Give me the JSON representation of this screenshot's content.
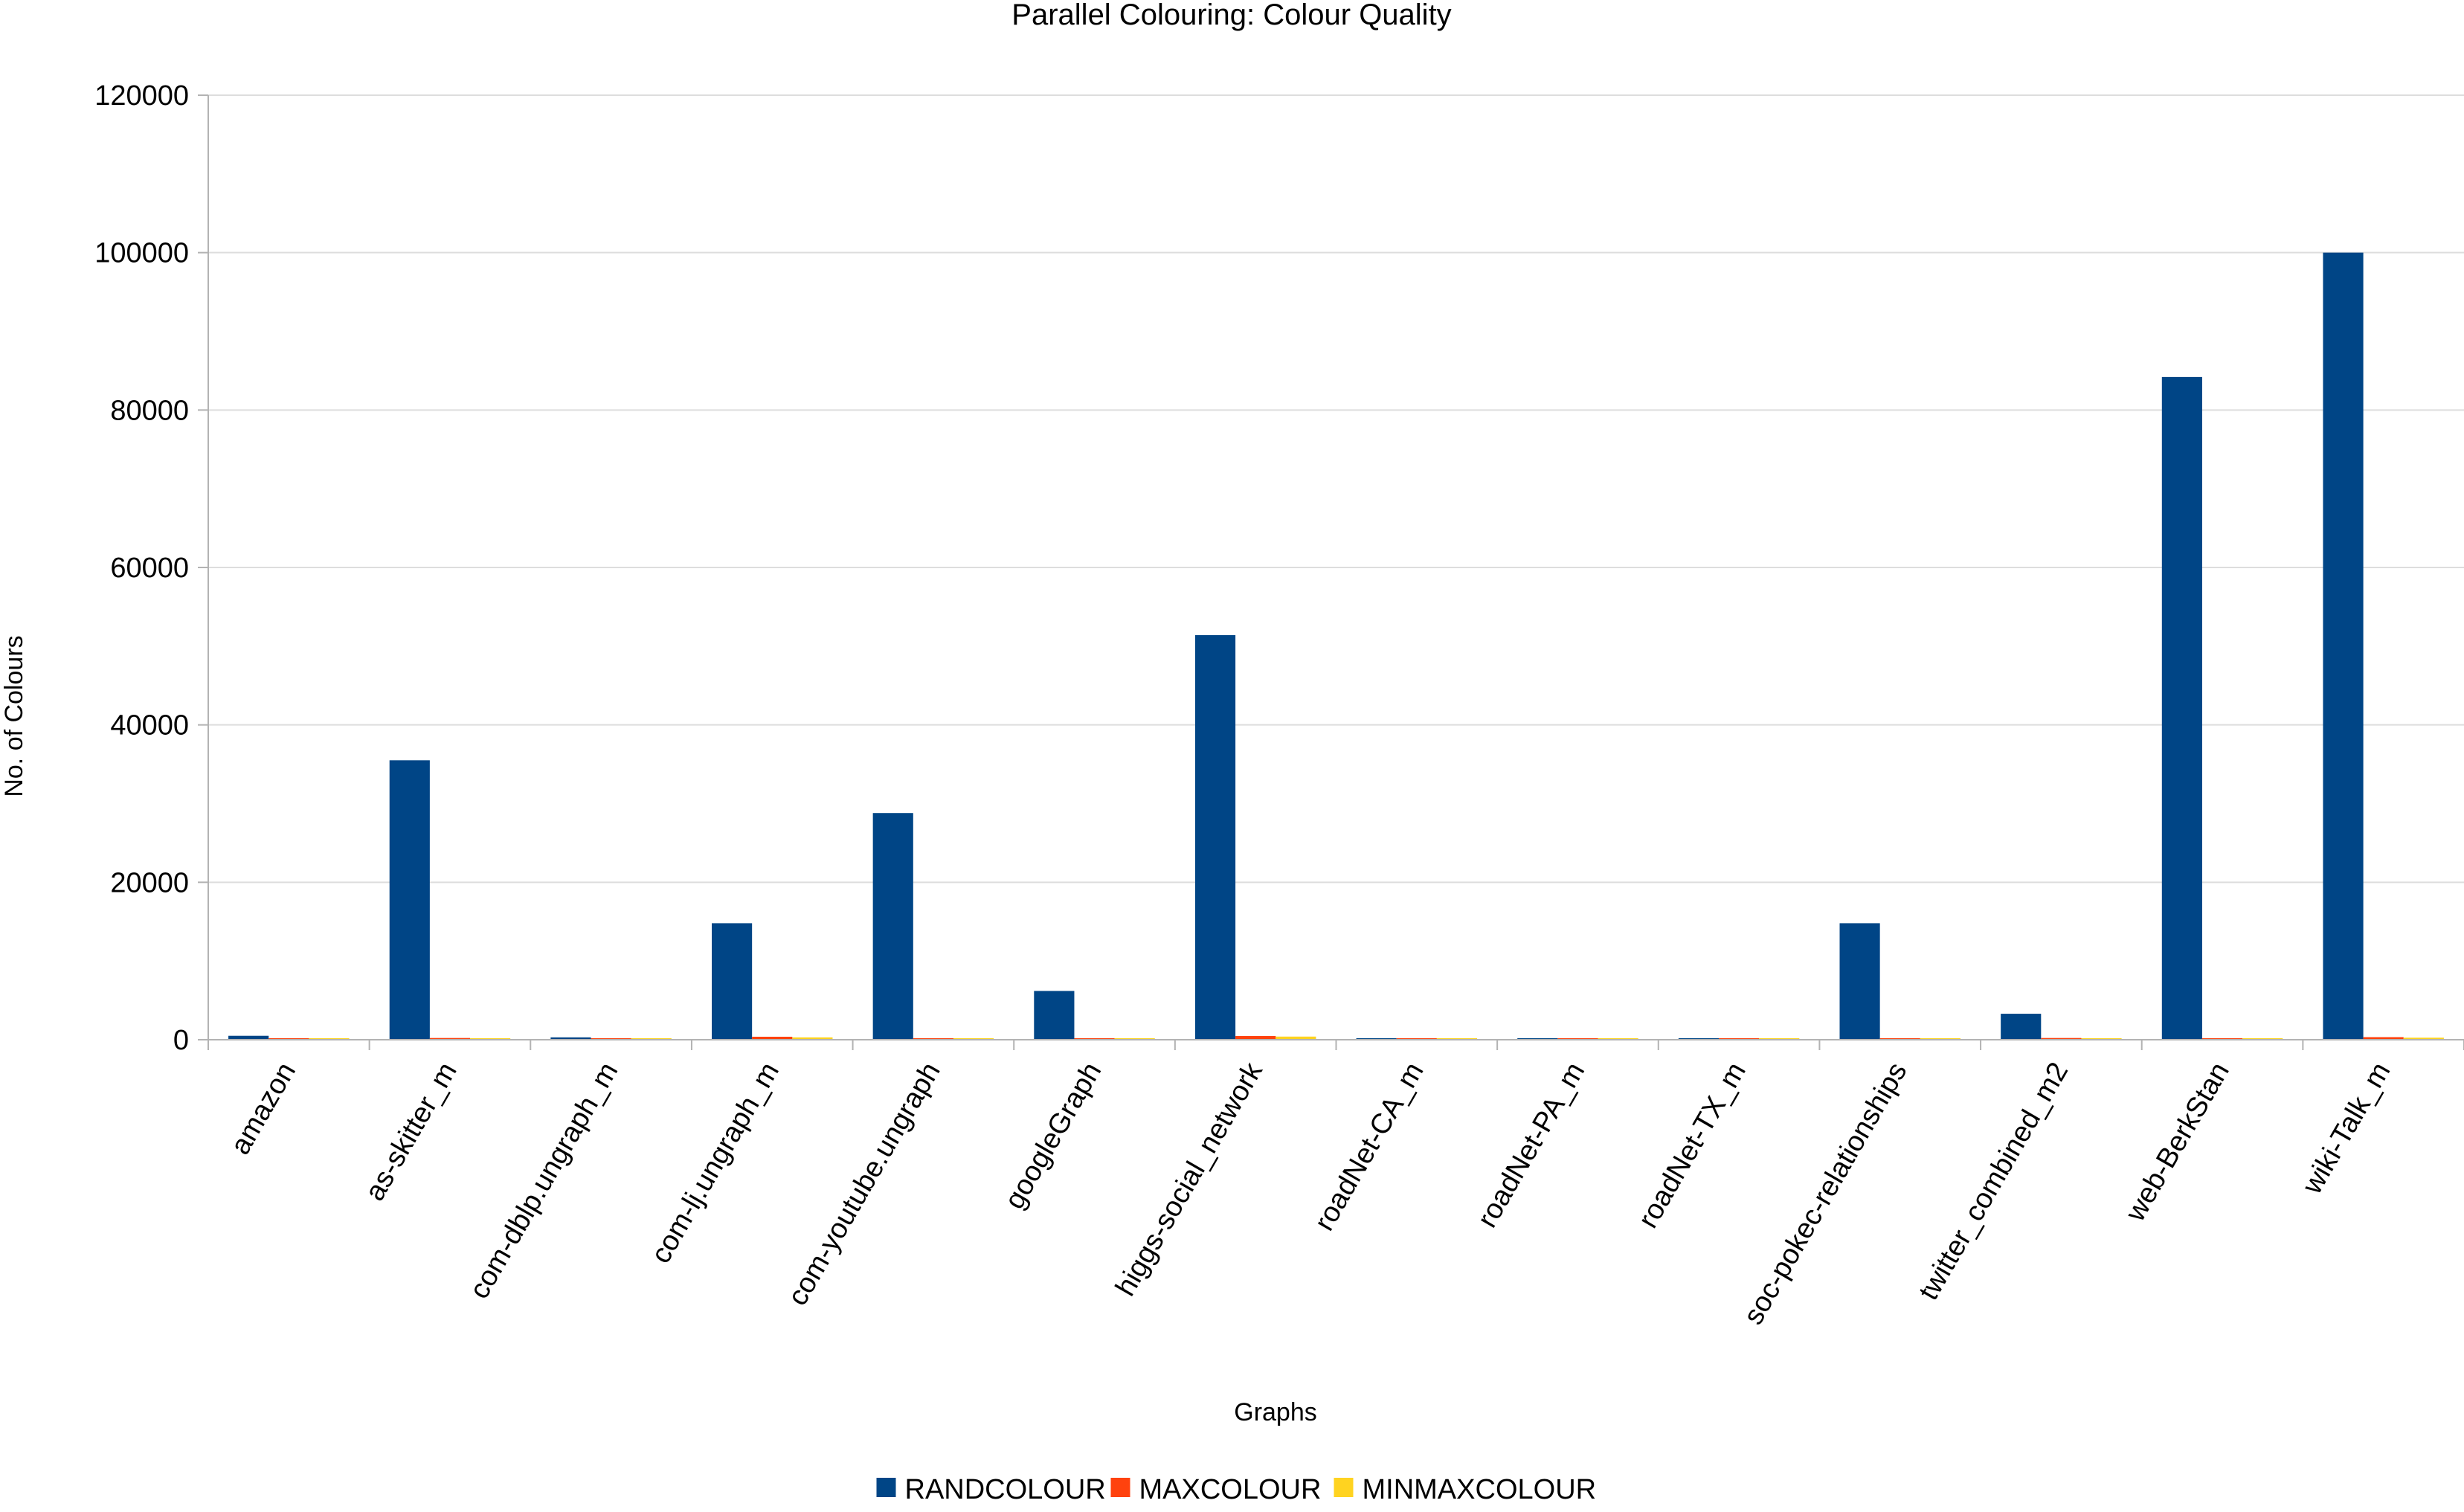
{
  "chart_data": {
    "type": "bar",
    "title": "Parallel Colouring: Colour Quality",
    "xlabel": "Graphs",
    "ylabel": "No. of Colours",
    "ylim": [
      0,
      120000
    ],
    "yticks": [
      0,
      20000,
      40000,
      60000,
      80000,
      100000,
      120000
    ],
    "grid": true,
    "legend_position": "bottom",
    "categories": [
      "amazon",
      "as-skitter_m",
      "com-dblp.ungraph_m",
      "com-lj.ungraph_m",
      "com-youtube.ungraph",
      "googleGraph",
      "higgs-social_network",
      "roadNet-CA_m",
      "roadNet-PA_m",
      "roadNet-TX_m",
      "soc-pokec-relationships",
      "twitter_combined_m2",
      "web-BerkStan",
      "wiki-Talk_m"
    ],
    "series": [
      {
        "name": "RANDCOLOUR",
        "color": "#004586",
        "values": [
          500,
          35500,
          300,
          14800,
          28800,
          6200,
          51400,
          60,
          40,
          50,
          14800,
          3300,
          84200,
          100000
        ]
      },
      {
        "name": "MAXCOLOUR",
        "color": "#ff420e",
        "values": [
          60,
          220,
          90,
          380,
          180,
          90,
          470,
          20,
          20,
          20,
          160,
          220,
          180,
          330
        ]
      },
      {
        "name": "MINMAXCOLOUR",
        "color": "#ffd320",
        "values": [
          40,
          180,
          70,
          300,
          150,
          60,
          400,
          15,
          15,
          15,
          130,
          170,
          150,
          260
        ]
      }
    ]
  }
}
